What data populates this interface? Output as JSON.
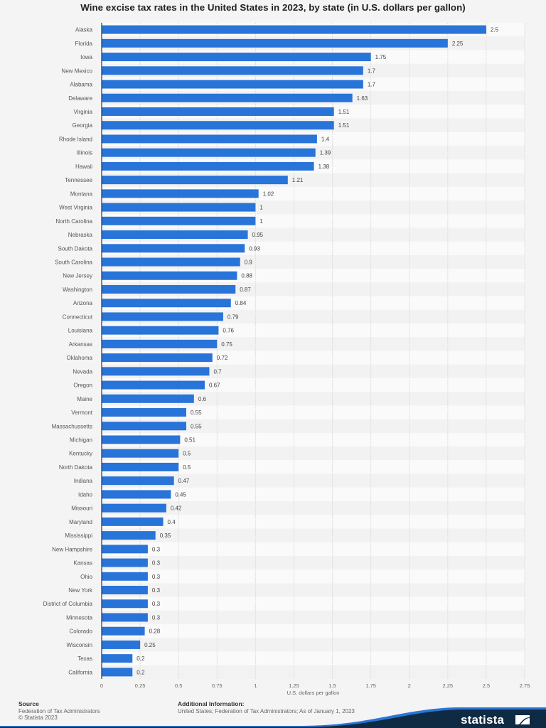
{
  "chart_data": {
    "type": "bar",
    "orientation": "horizontal",
    "title": "Wine excise tax rates in the United States in 2023, by state (in U.S. dollars per gallon)",
    "xlabel": "U.S. dollars per gallon",
    "ylabel": "",
    "xlim": [
      0,
      2.75
    ],
    "xticks": [
      0,
      0.25,
      0.5,
      0.75,
      1,
      1.25,
      1.5,
      1.75,
      2,
      2.25,
      2.5,
      2.75
    ],
    "xtick_labels": [
      "0",
      "0.25",
      "0.5",
      "0.75",
      "1",
      "1.25",
      "1.5",
      "1.75",
      "2",
      "2.25",
      "2.5",
      "2.75"
    ],
    "grid": true,
    "bar_color": "#2874d9",
    "categories": [
      "Alaska",
      "Florida",
      "Iowa",
      "New Mexico",
      "Alabama",
      "Delaware",
      "Virginia",
      "Georgia",
      "Rhode Island",
      "Illinois",
      "Hawaii",
      "Tennessee",
      "Montana",
      "West Virginia",
      "North Carolina",
      "Nebraska",
      "South Dakota",
      "South Carolina",
      "New Jersey",
      "Washington",
      "Arizona",
      "Connecticut",
      "Louisiana",
      "Arkansas",
      "Oklahoma",
      "Nevada",
      "Oregon",
      "Maine",
      "Vermont",
      "Massachussetts",
      "Michigan",
      "Kentucky",
      "North Dakota",
      "Indiana",
      "Idaho",
      "Missouri",
      "Maryland",
      "Mississippi",
      "New Hampshire",
      "Kansas",
      "Ohio",
      "New York",
      "District of Columbia",
      "Minnesota",
      "Colorado",
      "Wisconsin",
      "Texas",
      "California"
    ],
    "values": [
      2.5,
      2.25,
      1.75,
      1.7,
      1.7,
      1.63,
      1.51,
      1.51,
      1.4,
      1.39,
      1.38,
      1.21,
      1.02,
      1,
      1,
      0.95,
      0.93,
      0.9,
      0.88,
      0.87,
      0.84,
      0.79,
      0.76,
      0.75,
      0.72,
      0.7,
      0.67,
      0.6,
      0.55,
      0.55,
      0.51,
      0.5,
      0.5,
      0.47,
      0.45,
      0.42,
      0.4,
      0.35,
      0.3,
      0.3,
      0.3,
      0.3,
      0.3,
      0.3,
      0.28,
      0.25,
      0.2,
      0.2
    ],
    "value_labels": [
      "2.5",
      "2.25",
      "1.75",
      "1.7",
      "1.7",
      "1.63",
      "1.51",
      "1.51",
      "1.4",
      "1.39",
      "1.38",
      "1.21",
      "1.02",
      "1",
      "1",
      "0.95",
      "0.93",
      "0.9",
      "0.88",
      "0.87",
      "0.84",
      "0.79",
      "0.76",
      "0.75",
      "0.72",
      "0.7",
      "0.67",
      "0.6",
      "0.55",
      "0.55",
      "0.51",
      "0.5",
      "0.5",
      "0.47",
      "0.45",
      "0.42",
      "0.4",
      "0.35",
      "0.3",
      "0.3",
      "0.3",
      "0.3",
      "0.3",
      "0.3",
      "0.28",
      "0.25",
      "0.2",
      "0.2"
    ]
  },
  "footer": {
    "source_heading": "Source",
    "source_line1": "Federation of Tax Administrators",
    "source_line2": "© Statista 2023",
    "additional_heading": "Additional Information:",
    "additional_text": "United States; Federation of Tax Administrators; As of January 1, 2023"
  },
  "brand": {
    "logo_text": "statista",
    "navy": "#0f2a43",
    "accent": "#2a74d6"
  }
}
